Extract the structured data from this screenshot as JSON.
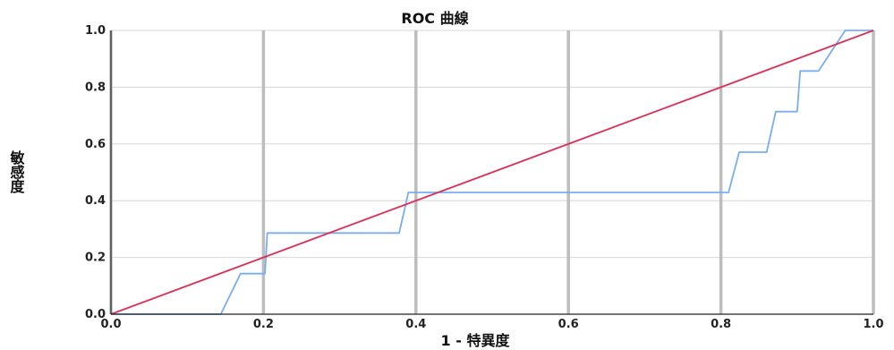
{
  "chart_data": {
    "type": "line",
    "title": "ROC 曲線",
    "xlabel": "1 - 特異度",
    "ylabel": "敏感度",
    "xlim": [
      0,
      1
    ],
    "ylim": [
      0,
      1
    ],
    "x_ticks": [
      "0.0",
      "0.2",
      "0.4",
      "0.6",
      "0.8",
      "1.0"
    ],
    "y_ticks": [
      "0.0",
      "0.2",
      "0.4",
      "0.6",
      "0.8",
      "1.0"
    ],
    "grid": true,
    "legend": "none",
    "series": [
      {
        "color": "#7aaef0",
        "points": [
          [
            0.0,
            0.0
          ],
          [
            0.144,
            0.0
          ],
          [
            0.17,
            0.143
          ],
          [
            0.202,
            0.143
          ],
          [
            0.205,
            0.286
          ],
          [
            0.378,
            0.286
          ],
          [
            0.39,
            0.429
          ],
          [
            0.81,
            0.429
          ],
          [
            0.824,
            0.571
          ],
          [
            0.86,
            0.571
          ],
          [
            0.872,
            0.714
          ],
          [
            0.9,
            0.714
          ],
          [
            0.904,
            0.857
          ],
          [
            0.928,
            0.857
          ],
          [
            0.963,
            1.0
          ],
          [
            1.0,
            1.0
          ]
        ]
      },
      {
        "color": "#d9335a",
        "points": [
          [
            0.0,
            0.0
          ],
          [
            1.0,
            1.0
          ]
        ]
      }
    ]
  }
}
